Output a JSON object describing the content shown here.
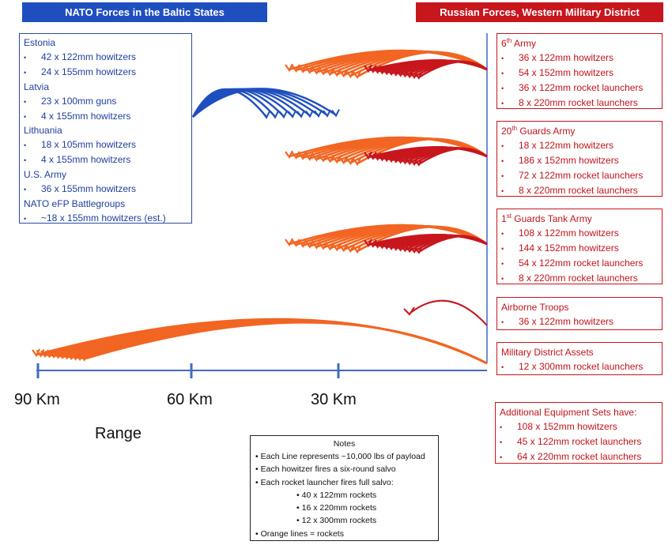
{
  "headers": {
    "nato": "NATO Forces in the Baltic States",
    "russia": "Russian Forces, Western Military District"
  },
  "nato_box": [
    {
      "title": "Estonia",
      "items": [
        "42 x 122mm howitzers",
        "24 x 155mm howitzers"
      ]
    },
    {
      "title": "Latvia",
      "items": [
        "23 x 100mm guns",
        "4 x 155mm howitzers"
      ]
    },
    {
      "title": "Lithuania",
      "items": [
        "18 x 105mm howitzers",
        "4 x 155mm howitzers"
      ]
    },
    {
      "title": "U.S. Army",
      "items": [
        "36 x 155mm howitzers"
      ]
    },
    {
      "title": "NATO eFP Battlegroups",
      "items": [
        "~18 x 155mm howitzers (est.)"
      ]
    }
  ],
  "russian_groups": [
    {
      "ordinal": "6",
      "sup": "th",
      "name": " Army",
      "items": [
        "36 x 122mm howitzers",
        "54 x 152mm howitzers",
        "36 x 122mm rocket launchers",
        "8 x 220mm rocket launchers"
      ]
    },
    {
      "ordinal": "20",
      "sup": "th",
      "name": " Guards Army",
      "items": [
        "18 x 122mm howitzers",
        "186 x 152mm howitzers",
        "72 x 122mm rocket launchers",
        "8 x 220mm rocket launchers"
      ]
    },
    {
      "ordinal": "1",
      "sup": "st",
      "name": " Guards Tank Army",
      "items": [
        "108 x 122mm howitzers",
        "144 x 152mm howitzers",
        "54 x 122mm rocket launchers",
        "8 x 220mm rocket launchers"
      ]
    },
    {
      "ordinal": "",
      "sup": "",
      "name": "Airborne Troops",
      "items": [
        "36 x 122mm howitzers"
      ]
    },
    {
      "ordinal": "",
      "sup": "",
      "name": "Military District Assets",
      "items": [
        "12 x 300mm rocket launchers"
      ]
    }
  ],
  "additional": {
    "title": "Additional Equipment Sets have:",
    "items": [
      "108 x 152mm howitzers",
      "45 x 122mm rocket launchers",
      "64 x 220mm rocket launchers"
    ]
  },
  "bullet": "•",
  "axis": {
    "label": "Range",
    "ticks": [
      {
        "km": 90,
        "label": "90 Km"
      },
      {
        "km": 60,
        "label": "60 Km"
      },
      {
        "km": 30,
        "label": "30 Km"
      }
    ]
  },
  "notes": {
    "title": "Notes",
    "lines": [
      "Each Line represents ~10,000 lbs of payload",
      "Each howitzer fires a six-round salvo",
      "Each rocket launcher fires full salvo:"
    ],
    "sub": [
      "40 x 122mm rockets",
      "16 x 220mm rockets",
      "12 x 300mm rockets"
    ],
    "last": "Orange lines = rockets"
  },
  "colors": {
    "nato_blue": "#1f4fbf",
    "russia_red": "#c8161d",
    "rocket_orange": "#f26522",
    "howitzer_red": "#c8161d"
  }
}
